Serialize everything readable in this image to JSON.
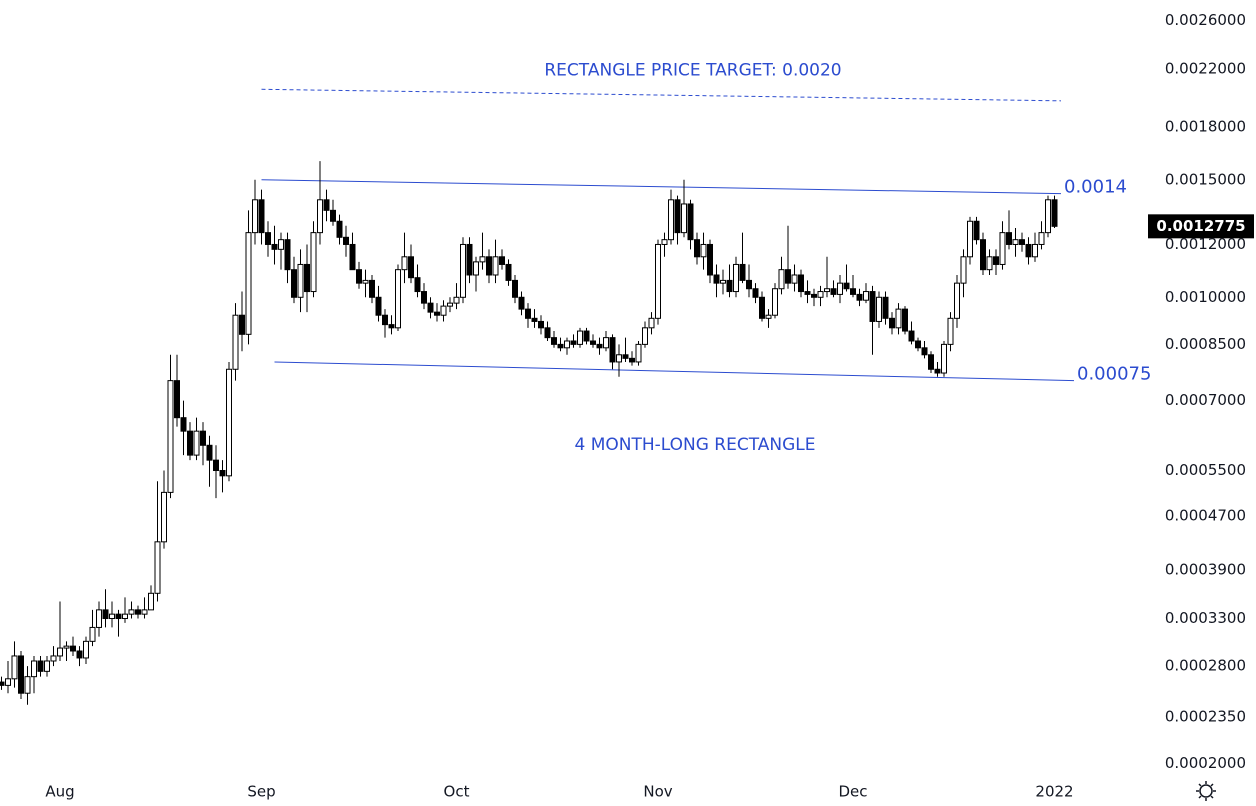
{
  "chart_data": {
    "type": "candlestick",
    "categories": [
      null,
      null,
      null,
      null,
      null,
      null,
      null,
      null,
      null,
      "Aug",
      null,
      null,
      null,
      null,
      null,
      null,
      null,
      null,
      null,
      null,
      null,
      null,
      null,
      null,
      null,
      null,
      null,
      null,
      null,
      null,
      null,
      null,
      null,
      null,
      null,
      null,
      null,
      null,
      null,
      null,
      "Sep",
      null,
      null,
      null,
      null,
      null,
      null,
      null,
      null,
      null,
      null,
      null,
      null,
      null,
      null,
      null,
      null,
      null,
      null,
      null,
      null,
      null,
      null,
      null,
      null,
      null,
      null,
      null,
      null,
      null,
      "Oct",
      null,
      null,
      null,
      null,
      null,
      null,
      null,
      null,
      null,
      null,
      null,
      null,
      null,
      null,
      null,
      null,
      null,
      null,
      null,
      null,
      null,
      null,
      null,
      null,
      null,
      null,
      null,
      null,
      null,
      null,
      "Nov",
      null,
      null,
      null,
      null,
      null,
      null,
      null,
      null,
      null,
      null,
      null,
      null,
      null,
      null,
      null,
      null,
      null,
      null,
      null,
      null,
      null,
      null,
      null,
      null,
      null,
      null,
      null,
      null,
      null,
      "Dec",
      null,
      null,
      null,
      null,
      null,
      null,
      null,
      null,
      null,
      null,
      null,
      null,
      null,
      null,
      null,
      null,
      null,
      null,
      null,
      null,
      null,
      null,
      null,
      null,
      null,
      null,
      null,
      null,
      null,
      null,
      "2022"
    ],
    "ohlc": [
      [
        0.000265,
        0.00027,
        0.000258,
        0.000262
      ],
      [
        0.000262,
        0.000285,
        0.000255,
        0.000268
      ],
      [
        0.000268,
        0.000305,
        0.00026,
        0.00029
      ],
      [
        0.00029,
        0.000295,
        0.00025,
        0.000255
      ],
      [
        0.000255,
        0.00028,
        0.000245,
        0.00027
      ],
      [
        0.00027,
        0.00029,
        0.000255,
        0.000285
      ],
      [
        0.000285,
        0.00029,
        0.00027,
        0.000275
      ],
      [
        0.000275,
        0.00029,
        0.00027,
        0.000285
      ],
      [
        0.000285,
        0.0003,
        0.00028,
        0.00029
      ],
      [
        0.00029,
        0.00035,
        0.000285,
        0.000298
      ],
      [
        0.000298,
        0.000305,
        0.000285,
        0.0003
      ],
      [
        0.0003,
        0.00031,
        0.00029,
        0.000295
      ],
      [
        0.000295,
        0.0003,
        0.00028,
        0.000288
      ],
      [
        0.000288,
        0.00031,
        0.000282,
        0.000305
      ],
      [
        0.000305,
        0.00034,
        0.0003,
        0.00032
      ],
      [
        0.00032,
        0.00035,
        0.00031,
        0.00034
      ],
      [
        0.00034,
        0.000365,
        0.00032,
        0.00033
      ],
      [
        0.00033,
        0.00035,
        0.00032,
        0.000335
      ],
      [
        0.000335,
        0.00034,
        0.00031,
        0.00033
      ],
      [
        0.00033,
        0.000355,
        0.000325,
        0.000335
      ],
      [
        0.000335,
        0.00035,
        0.00033,
        0.00034
      ],
      [
        0.00034,
        0.000345,
        0.00033,
        0.000335
      ],
      [
        0.000335,
        0.000355,
        0.00033,
        0.00034
      ],
      [
        0.00034,
        0.00037,
        0.00034,
        0.00036
      ],
      [
        0.00036,
        0.00053,
        0.00035,
        0.00043
      ],
      [
        0.00043,
        0.00055,
        0.00042,
        0.00051
      ],
      [
        0.00051,
        0.00082,
        0.0005,
        0.00075
      ],
      [
        0.00075,
        0.00082,
        0.00064,
        0.00066
      ],
      [
        0.00066,
        0.0007,
        0.00058,
        0.00063
      ],
      [
        0.00063,
        0.00065,
        0.00057,
        0.00058
      ],
      [
        0.00058,
        0.00066,
        0.00057,
        0.00063
      ],
      [
        0.00063,
        0.00065,
        0.00056,
        0.0006
      ],
      [
        0.0006,
        0.00062,
        0.00052,
        0.00057
      ],
      [
        0.00057,
        0.0006,
        0.0005,
        0.00055
      ],
      [
        0.00055,
        0.00057,
        0.00051,
        0.00054
      ],
      [
        0.00054,
        0.0008,
        0.00053,
        0.00078
      ],
      [
        0.00078,
        0.00098,
        0.00075,
        0.00094
      ],
      [
        0.00094,
        0.00102,
        0.00083,
        0.00088
      ],
      [
        0.00088,
        0.00135,
        0.00085,
        0.00125
      ],
      [
        0.00125,
        0.0015,
        0.0012,
        0.0014
      ],
      [
        0.0014,
        0.00145,
        0.0012,
        0.00125
      ],
      [
        0.00125,
        0.0013,
        0.00115,
        0.0012
      ],
      [
        0.0012,
        0.00128,
        0.00112,
        0.00118
      ],
      [
        0.00118,
        0.00125,
        0.0011,
        0.00122
      ],
      [
        0.00122,
        0.00125,
        0.00105,
        0.0011
      ],
      [
        0.0011,
        0.00115,
        0.00098,
        0.001
      ],
      [
        0.001,
        0.00118,
        0.00095,
        0.00112
      ],
      [
        0.00112,
        0.0012,
        0.00095,
        0.00102
      ],
      [
        0.00102,
        0.0013,
        0.001,
        0.00125
      ],
      [
        0.00125,
        0.0016,
        0.0012,
        0.0014
      ],
      [
        0.0014,
        0.00145,
        0.0013,
        0.00135
      ],
      [
        0.00135,
        0.0014,
        0.00128,
        0.0013
      ],
      [
        0.0013,
        0.00133,
        0.0012,
        0.00123
      ],
      [
        0.00123,
        0.00128,
        0.00115,
        0.0012
      ],
      [
        0.0012,
        0.00125,
        0.0011,
        0.0011
      ],
      [
        0.0011,
        0.00113,
        0.00103,
        0.00105
      ],
      [
        0.00105,
        0.0011,
        0.001,
        0.00106
      ],
      [
        0.00106,
        0.00108,
        0.00098,
        0.001
      ],
      [
        0.001,
        0.00104,
        0.00092,
        0.00094
      ],
      [
        0.00094,
        0.00096,
        0.00087,
        0.00091
      ],
      [
        0.00091,
        0.00094,
        0.00088,
        0.0009
      ],
      [
        0.0009,
        0.00112,
        0.00089,
        0.0011
      ],
      [
        0.0011,
        0.00125,
        0.00105,
        0.00115
      ],
      [
        0.00115,
        0.0012,
        0.00105,
        0.00107
      ],
      [
        0.00107,
        0.00112,
        0.001,
        0.00102
      ],
      [
        0.00102,
        0.00105,
        0.00096,
        0.00098
      ],
      [
        0.00098,
        0.001,
        0.00093,
        0.00095
      ],
      [
        0.00095,
        0.00098,
        0.00092,
        0.00094
      ],
      [
        0.00094,
        0.00099,
        0.00092,
        0.00097
      ],
      [
        0.00097,
        0.001,
        0.00095,
        0.00098
      ],
      [
        0.00098,
        0.00105,
        0.00096,
        0.001
      ],
      [
        0.001,
        0.00123,
        0.00098,
        0.0012
      ],
      [
        0.0012,
        0.00123,
        0.00105,
        0.00108
      ],
      [
        0.00108,
        0.00115,
        0.00102,
        0.00113
      ],
      [
        0.00113,
        0.00125,
        0.0011,
        0.00115
      ],
      [
        0.00115,
        0.00118,
        0.00105,
        0.00108
      ],
      [
        0.00108,
        0.00122,
        0.00105,
        0.00115
      ],
      [
        0.00115,
        0.00118,
        0.0011,
        0.00112
      ],
      [
        0.00112,
        0.00114,
        0.00104,
        0.00106
      ],
      [
        0.00106,
        0.00108,
        0.00098,
        0.001
      ],
      [
        0.001,
        0.00102,
        0.00094,
        0.00096
      ],
      [
        0.00096,
        0.00098,
        0.0009,
        0.00093
      ],
      [
        0.00093,
        0.00096,
        0.0009,
        0.00092
      ],
      [
        0.00092,
        0.00094,
        0.00088,
        0.0009
      ],
      [
        0.0009,
        0.00092,
        0.00086,
        0.00087
      ],
      [
        0.00087,
        0.00089,
        0.00084,
        0.00085
      ],
      [
        0.00085,
        0.00087,
        0.00083,
        0.00084
      ],
      [
        0.00084,
        0.00087,
        0.00082,
        0.00086
      ],
      [
        0.00086,
        0.00088,
        0.00084,
        0.00085
      ],
      [
        0.00085,
        0.0009,
        0.00084,
        0.00089
      ],
      [
        0.00089,
        0.0009,
        0.00085,
        0.00086
      ],
      [
        0.00086,
        0.00088,
        0.00084,
        0.00085
      ],
      [
        0.00085,
        0.00087,
        0.00082,
        0.00084
      ],
      [
        0.00084,
        0.00089,
        0.00083,
        0.00087
      ],
      [
        0.00087,
        0.00088,
        0.00078,
        0.0008
      ],
      [
        0.0008,
        0.00085,
        0.00076,
        0.00082
      ],
      [
        0.00082,
        0.00087,
        0.0008,
        0.00081
      ],
      [
        0.00081,
        0.00083,
        0.00079,
        0.0008
      ],
      [
        0.0008,
        0.00086,
        0.00079,
        0.00085
      ],
      [
        0.00085,
        0.00092,
        0.00084,
        0.0009
      ],
      [
        0.0009,
        0.00095,
        0.00088,
        0.00093
      ],
      [
        0.00093,
        0.00122,
        0.00091,
        0.0012
      ],
      [
        0.0012,
        0.00125,
        0.00115,
        0.00122
      ],
      [
        0.00122,
        0.00145,
        0.0012,
        0.0014
      ],
      [
        0.0014,
        0.00142,
        0.0012,
        0.00125
      ],
      [
        0.00125,
        0.0015,
        0.00123,
        0.00138
      ],
      [
        0.00138,
        0.0014,
        0.00118,
        0.00122
      ],
      [
        0.00122,
        0.00125,
        0.00112,
        0.00115
      ],
      [
        0.00115,
        0.00125,
        0.0011,
        0.0012
      ],
      [
        0.0012,
        0.00122,
        0.00105,
        0.00108
      ],
      [
        0.00108,
        0.00112,
        0.001,
        0.00105
      ],
      [
        0.00105,
        0.0011,
        0.00101,
        0.00106
      ],
      [
        0.00106,
        0.00112,
        0.001,
        0.00102
      ],
      [
        0.00102,
        0.00115,
        0.001,
        0.00112
      ],
      [
        0.00112,
        0.00125,
        0.00105,
        0.00106
      ],
      [
        0.00106,
        0.00112,
        0.001,
        0.00103
      ],
      [
        0.00103,
        0.00105,
        0.00098,
        0.001
      ],
      [
        0.001,
        0.00102,
        0.00092,
        0.00093
      ],
      [
        0.00093,
        0.00096,
        0.0009,
        0.00094
      ],
      [
        0.00094,
        0.00105,
        0.00093,
        0.00103
      ],
      [
        0.00103,
        0.00115,
        0.00101,
        0.0011
      ],
      [
        0.0011,
        0.00128,
        0.00103,
        0.00105
      ],
      [
        0.00105,
        0.00112,
        0.00102,
        0.00108
      ],
      [
        0.00108,
        0.0011,
        0.001,
        0.00102
      ],
      [
        0.00102,
        0.00106,
        0.00098,
        0.00101
      ],
      [
        0.00101,
        0.00103,
        0.00097,
        0.001
      ],
      [
        0.001,
        0.00104,
        0.00097,
        0.00102
      ],
      [
        0.00102,
        0.00115,
        0.001,
        0.00103
      ],
      [
        0.00103,
        0.00106,
        0.001,
        0.00101
      ],
      [
        0.00101,
        0.00108,
        0.00098,
        0.00105
      ],
      [
        0.00105,
        0.00112,
        0.00102,
        0.00103
      ],
      [
        0.00103,
        0.00108,
        0.001,
        0.00101
      ],
      [
        0.00101,
        0.00103,
        0.00097,
        0.00099
      ],
      [
        0.00099,
        0.00105,
        0.00098,
        0.00102
      ],
      [
        0.00102,
        0.00104,
        0.00082,
        0.00092
      ],
      [
        0.00092,
        0.00102,
        0.0009,
        0.001
      ],
      [
        0.001,
        0.00102,
        0.00091,
        0.00093
      ],
      [
        0.00093,
        0.00095,
        0.00088,
        0.0009
      ],
      [
        0.0009,
        0.00098,
        0.00088,
        0.00096
      ],
      [
        0.00096,
        0.00097,
        0.00088,
        0.00089
      ],
      [
        0.00089,
        0.00092,
        0.00085,
        0.00086
      ],
      [
        0.00086,
        0.00087,
        0.00083,
        0.00084
      ],
      [
        0.00084,
        0.00086,
        0.00081,
        0.00082
      ],
      [
        0.00082,
        0.00083,
        0.00077,
        0.00078
      ],
      [
        0.00078,
        0.0008,
        0.00076,
        0.00077
      ],
      [
        0.00077,
        0.00086,
        0.00076,
        0.00085
      ],
      [
        0.00085,
        0.00095,
        0.00083,
        0.00093
      ],
      [
        0.00093,
        0.00108,
        0.0009,
        0.00105
      ],
      [
        0.00105,
        0.00118,
        0.001,
        0.00115
      ],
      [
        0.00115,
        0.00132,
        0.00112,
        0.0013
      ],
      [
        0.0013,
        0.00132,
        0.0012,
        0.00122
      ],
      [
        0.00122,
        0.00125,
        0.00108,
        0.0011
      ],
      [
        0.0011,
        0.00118,
        0.00108,
        0.00115
      ],
      [
        0.00115,
        0.00118,
        0.00108,
        0.00112
      ],
      [
        0.00112,
        0.0013,
        0.0011,
        0.00125
      ],
      [
        0.00125,
        0.00135,
        0.00118,
        0.0012
      ],
      [
        0.0012,
        0.00127,
        0.00115,
        0.00122
      ],
      [
        0.00122,
        0.00125,
        0.00117,
        0.0012
      ],
      [
        0.0012,
        0.00123,
        0.00112,
        0.00115
      ],
      [
        0.00115,
        0.00125,
        0.00113,
        0.0012
      ],
      [
        0.0012,
        0.0013,
        0.00118,
        0.00125
      ],
      [
        0.00125,
        0.00142,
        0.00123,
        0.0014
      ],
      [
        0.0014,
        0.00142,
        0.00127,
        0.0012775
      ]
    ],
    "up_color": "#ffffff",
    "down_color": "#000000",
    "wick_color": "#000000",
    "ylim": [
      0.000189,
      0.00279
    ],
    "log_scale": true,
    "yticks": [
      {
        "value": 0.0026,
        "label": "0.0026000"
      },
      {
        "value": 0.0022,
        "label": "0.0022000"
      },
      {
        "value": 0.0018,
        "label": "0.0018000"
      },
      {
        "value": 0.0015,
        "label": "0.0015000"
      },
      {
        "value": 0.0012,
        "label": "0.0012000"
      },
      {
        "value": 0.001,
        "label": "0.0010000"
      },
      {
        "value": 0.00085,
        "label": "0.0008500"
      },
      {
        "value": 0.0007,
        "label": "0.0007000"
      },
      {
        "value": 0.00055,
        "label": "0.0005500"
      },
      {
        "value": 0.00047,
        "label": "0.0004700"
      },
      {
        "value": 0.00039,
        "label": "0.0003900"
      },
      {
        "value": 0.00033,
        "label": "0.0003300"
      },
      {
        "value": 0.00028,
        "label": "0.0002800"
      },
      {
        "value": 0.000235,
        "label": "0.0002350"
      },
      {
        "value": 0.0002,
        "label": "0.0002000"
      }
    ],
    "last_price": 0.0012775,
    "line_color": "#2c4ccf",
    "trendlines": [
      {
        "from_index": 40,
        "to_index": 163,
        "values": [
          0.0015,
          0.00143
        ],
        "label": 0.0014
      },
      {
        "from_index": 42,
        "to_index": 165,
        "values": [
          0.0008,
          0.00075
        ],
        "label": 0.00075
      },
      {
        "from_index": 40,
        "to_index": 163,
        "values": [
          0.00205,
          0.00197
        ],
        "dashed": true
      }
    ],
    "annotations": [
      "RECTANGLE PRICE TARGET: 0.0020",
      "4 MONTH-LONG RECTANGLE"
    ]
  }
}
